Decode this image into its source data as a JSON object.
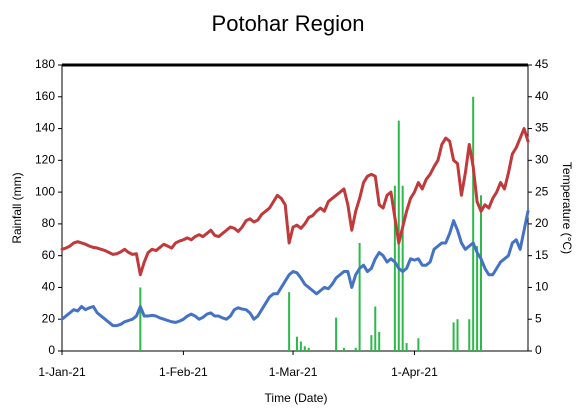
{
  "chart_data": {
    "type": "bar",
    "title": "Potohar Region",
    "xlabel": "Time (Date)",
    "ylabel": "Rainfall (mm)",
    "y2label": "Temperature (°C)",
    "x": [
      "2021-01-01",
      "2021-01-02",
      "2021-01-03",
      "2021-01-04",
      "2021-01-05",
      "2021-01-06",
      "2021-01-07",
      "2021-01-08",
      "2021-01-09",
      "2021-01-10",
      "2021-01-11",
      "2021-01-12",
      "2021-01-13",
      "2021-01-14",
      "2021-01-15",
      "2021-01-16",
      "2021-01-17",
      "2021-01-18",
      "2021-01-19",
      "2021-01-20",
      "2021-01-21",
      "2021-01-22",
      "2021-01-23",
      "2021-01-24",
      "2021-01-25",
      "2021-01-26",
      "2021-01-27",
      "2021-01-28",
      "2021-01-29",
      "2021-01-30",
      "2021-01-31",
      "2021-02-01",
      "2021-02-02",
      "2021-02-03",
      "2021-02-04",
      "2021-02-05",
      "2021-02-06",
      "2021-02-07",
      "2021-02-08",
      "2021-02-09",
      "2021-02-10",
      "2021-02-11",
      "2021-02-12",
      "2021-02-13",
      "2021-02-14",
      "2021-02-15",
      "2021-02-16",
      "2021-02-17",
      "2021-02-18",
      "2021-02-19",
      "2021-02-20",
      "2021-02-21",
      "2021-02-22",
      "2021-02-23",
      "2021-02-24",
      "2021-02-25",
      "2021-02-26",
      "2021-02-27",
      "2021-02-28",
      "2021-03-01",
      "2021-03-02",
      "2021-03-03",
      "2021-03-04",
      "2021-03-05",
      "2021-03-06",
      "2021-03-07",
      "2021-03-08",
      "2021-03-09",
      "2021-03-10",
      "2021-03-11",
      "2021-03-12",
      "2021-03-13",
      "2021-03-14",
      "2021-03-15",
      "2021-03-16",
      "2021-03-17",
      "2021-03-18",
      "2021-03-19",
      "2021-03-20",
      "2021-03-21",
      "2021-03-22",
      "2021-03-23",
      "2021-03-24",
      "2021-03-25",
      "2021-03-26",
      "2021-03-27",
      "2021-03-28",
      "2021-03-29",
      "2021-03-30",
      "2021-03-31",
      "2021-04-01",
      "2021-04-02",
      "2021-04-03",
      "2021-04-04",
      "2021-04-05",
      "2021-04-06",
      "2021-04-07",
      "2021-04-08",
      "2021-04-09",
      "2021-04-10",
      "2021-04-11",
      "2021-04-12",
      "2021-04-13",
      "2021-04-14",
      "2021-04-15",
      "2021-04-16",
      "2021-04-17",
      "2021-04-18",
      "2021-04-19",
      "2021-04-20",
      "2021-04-21",
      "2021-04-22",
      "2021-04-23",
      "2021-04-24",
      "2021-04-25",
      "2021-04-26",
      "2021-04-27",
      "2021-04-28",
      "2021-04-29",
      "2021-04-30"
    ],
    "xlim": [
      "2021-01-01",
      "2021-04-30"
    ],
    "xticks": [
      {
        "value": "2021-01-01",
        "label": "1-Jan-21"
      },
      {
        "value": "2021-02-01",
        "label": "1-Feb-21"
      },
      {
        "value": "2021-03-01",
        "label": "1-Mar-21"
      },
      {
        "value": "2021-04-01",
        "label": "1-Apr-21"
      }
    ],
    "ylim": [
      0,
      180
    ],
    "yticks": [
      0,
      20,
      40,
      60,
      80,
      100,
      120,
      140,
      160,
      180
    ],
    "y2lim": [
      0,
      45
    ],
    "y2ticks": [
      0,
      5,
      10,
      15,
      20,
      25,
      30,
      35,
      40,
      45
    ],
    "series": [
      {
        "type": "bar",
        "color": "#2db84a",
        "axis": "y",
        "values": [
          0,
          0,
          0,
          0,
          0,
          0,
          0,
          0,
          0,
          0,
          0,
          0,
          0,
          0,
          0,
          0,
          0,
          0,
          0,
          0,
          40,
          0,
          0,
          0,
          0,
          0,
          0,
          0,
          0,
          0,
          0,
          0,
          0,
          0,
          0,
          0,
          0,
          0,
          0,
          0,
          0,
          0,
          0,
          0,
          0,
          0,
          0,
          0,
          0,
          0,
          0,
          0,
          0,
          0,
          0,
          0,
          0,
          0,
          37,
          0,
          9,
          6,
          3,
          2,
          0,
          0,
          0,
          0,
          0,
          0,
          21,
          0,
          2,
          0,
          0,
          2,
          68,
          0,
          0,
          10,
          28,
          12,
          0,
          0,
          0,
          104,
          145,
          104,
          5,
          0,
          0,
          8,
          0,
          0,
          0,
          0,
          0,
          0,
          0,
          0,
          18,
          20,
          0,
          0,
          20,
          160,
          66,
          98,
          0,
          0,
          0,
          0,
          0,
          0,
          0,
          0,
          0,
          0,
          0,
          0
        ]
      },
      {
        "type": "line",
        "color": "#c0393b",
        "axis": "y2",
        "values": [
          16,
          16.2,
          16.5,
          17,
          17.2,
          17,
          16.8,
          16.5,
          16.3,
          16.2,
          16,
          15.8,
          15.5,
          15.2,
          15.3,
          15.6,
          16,
          15.5,
          15.2,
          15.3,
          12,
          14,
          15.5,
          16,
          15.8,
          16.3,
          16.8,
          16.5,
          16.2,
          17,
          17.3,
          17.5,
          17.8,
          17.5,
          18,
          18.3,
          18,
          18.5,
          19,
          18.2,
          18,
          18.5,
          19,
          19.5,
          19.3,
          18.8,
          19.5,
          20.5,
          20.8,
          20.3,
          20.6,
          21.5,
          22,
          22.5,
          23.5,
          24.5,
          24,
          23,
          17,
          19.5,
          19.8,
          19.3,
          20,
          21,
          21.3,
          22,
          22.5,
          22,
          23.5,
          24,
          24.5,
          25,
          25.5,
          23,
          19,
          22,
          24,
          26.5,
          27.5,
          27.8,
          27.5,
          23,
          22.5,
          24.5,
          25,
          21,
          17,
          19.5,
          22,
          24,
          25,
          26.5,
          25.5,
          27,
          27.8,
          29,
          30,
          32.5,
          33.5,
          33,
          30,
          29.5,
          24.5,
          28,
          32.5,
          29,
          23.5,
          22,
          23,
          22.5,
          24,
          25,
          26.5,
          25.5,
          28,
          31,
          32,
          33.5,
          35,
          33
        ]
      },
      {
        "type": "line",
        "color": "#4472c4",
        "axis": "y2",
        "values": [
          5,
          5.5,
          6,
          6.5,
          6.3,
          7,
          6.5,
          6.8,
          7,
          6,
          5.5,
          5,
          4.5,
          4,
          4,
          4.2,
          4.6,
          4.8,
          5,
          5.5,
          7,
          5.5,
          5.5,
          5.6,
          5.5,
          5.2,
          5,
          4.8,
          4.6,
          4.5,
          4.7,
          5,
          5.5,
          5.8,
          5.5,
          5,
          5.3,
          5.8,
          6,
          5.5,
          5.5,
          5.2,
          5,
          5.5,
          6.5,
          6.8,
          6.6,
          6.5,
          6,
          5,
          5.5,
          6.5,
          7.5,
          8.5,
          9,
          9,
          10,
          11,
          12,
          12.5,
          12.3,
          11.5,
          10.5,
          10,
          9.5,
          9,
          9.5,
          10,
          9.8,
          10.5,
          11.5,
          12,
          12.5,
          12.5,
          10,
          12,
          13,
          13.5,
          12.5,
          13,
          14.5,
          15.5,
          15,
          14,
          14.5,
          14,
          13,
          12.5,
          13,
          14.5,
          14.3,
          14.5,
          13.5,
          13.5,
          14,
          16,
          16.5,
          17,
          17,
          18.5,
          20.5,
          19,
          17,
          16,
          16.5,
          17,
          15.5,
          14.5,
          13,
          12,
          12,
          13,
          14,
          14.5,
          15,
          17,
          17.5,
          16,
          19,
          22
        ]
      }
    ]
  }
}
